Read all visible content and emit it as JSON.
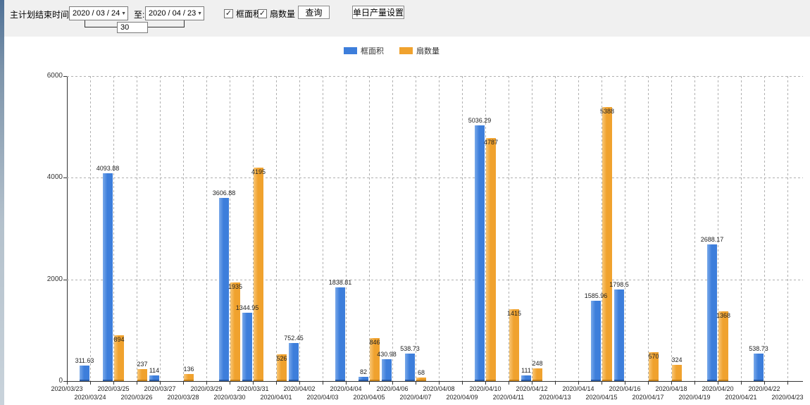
{
  "toolbar": {
    "start_label": "主计划结束时间:",
    "date_from": "2020 / 03 / 24",
    "to_label": "至:",
    "date_to": "2020 / 04 / 23",
    "interval_days": "30",
    "checkbox_frame": {
      "label": "框面积",
      "checked": true
    },
    "checkbox_fan": {
      "label": "扇数量",
      "checked": true
    },
    "query_button": "查询",
    "daily_output_button": "单日产量设置",
    "check_glyph": "✓",
    "dropdown_glyph": "▼"
  },
  "chart_data": {
    "type": "bar",
    "title": "",
    "xlabel": "",
    "ylabel": "",
    "ylim": [
      0,
      6000
    ],
    "yticks": [
      0,
      2000,
      4000,
      6000
    ],
    "grid": "dashed",
    "legend_position": "top-center",
    "categories": [
      "2020/03/23",
      "2020/03/24",
      "2020/03/25",
      "2020/03/26",
      "2020/03/27",
      "2020/03/28",
      "2020/03/29",
      "2020/03/30",
      "2020/03/31",
      "2020/04/01",
      "2020/04/02",
      "2020/04/03",
      "2020/04/04",
      "2020/04/05",
      "2020/04/06",
      "2020/04/07",
      "2020/04/08",
      "2020/04/09",
      "2020/04/10",
      "2020/04/11",
      "2020/04/12",
      "2020/04/13",
      "2020/04/14",
      "2020/04/15",
      "2020/04/16",
      "2020/04/17",
      "2020/04/18",
      "2020/04/19",
      "2020/04/20",
      "2020/04/21",
      "2020/04/22",
      "2020/04/23"
    ],
    "series": [
      {
        "name": "框面积",
        "color": "#3d7edb",
        "values": [
          null,
          311.63,
          4093.88,
          null,
          114,
          null,
          null,
          3606.88,
          1344.95,
          null,
          752.45,
          null,
          1838.81,
          82,
          430.98,
          538.73,
          null,
          null,
          5036.29,
          null,
          111,
          null,
          null,
          1585.96,
          1798.5,
          null,
          null,
          null,
          2688.17,
          null,
          538.73,
          null
        ]
      },
      {
        "name": "扇数量",
        "color": "#f0a22e",
        "values": [
          null,
          null,
          894,
          237,
          null,
          136,
          null,
          1935,
          4195,
          526,
          null,
          null,
          null,
          846,
          null,
          68,
          null,
          null,
          4787,
          1415,
          248,
          null,
          null,
          5388,
          null,
          570,
          324,
          null,
          1368,
          null,
          null,
          null
        ]
      }
    ]
  }
}
